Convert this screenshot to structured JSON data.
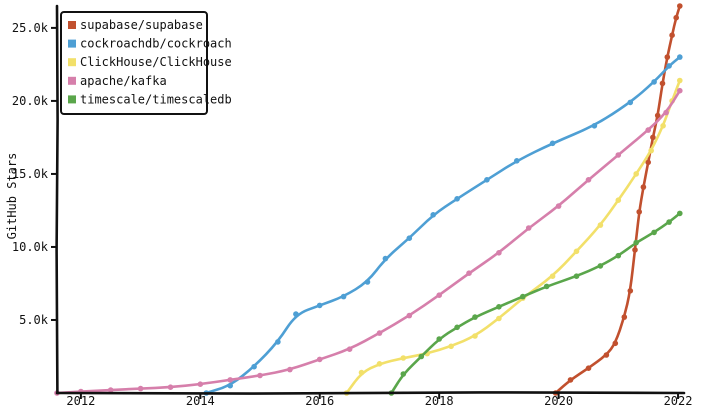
{
  "chart_data": {
    "type": "line",
    "title": "",
    "xlabel": "",
    "ylabel": "GitHub Stars",
    "xlim": [
      2011.6,
      2022.1
    ],
    "ylim": [
      0,
      26500
    ],
    "x_ticks": [
      2012,
      2014,
      2016,
      2018,
      2020,
      2022
    ],
    "x_tick_labels": [
      "2012",
      "2014",
      "2016",
      "2018",
      "2020",
      "2022"
    ],
    "y_ticks": [
      5000,
      10000,
      15000,
      20000,
      25000
    ],
    "y_tick_labels": [
      "5.0k",
      "10.0k",
      "15.0k",
      "20.0k",
      "25.0k"
    ],
    "grid": false,
    "legend_position": "top-left",
    "series": [
      {
        "name": "supabase/supabase",
        "color": "#c1502e",
        "x": [
          2019.95,
          2020.2,
          2020.5,
          2020.8,
          2020.95,
          2021.1,
          2021.2,
          2021.28,
          2021.35,
          2021.42,
          2021.5,
          2021.58,
          2021.66,
          2021.74,
          2021.82,
          2021.9,
          2021.97,
          2022.03
        ],
        "y": [
          0,
          900,
          1700,
          2600,
          3400,
          5200,
          7000,
          9800,
          12400,
          14100,
          15800,
          17500,
          19000,
          21200,
          23000,
          24500,
          25700,
          26500
        ]
      },
      {
        "name": "cockroachdb/cockroach",
        "color": "#4e9fd4",
        "x": [
          2014.1,
          2014.5,
          2014.9,
          2015.3,
          2015.6,
          2016.0,
          2016.4,
          2016.8,
          2017.1,
          2017.5,
          2017.9,
          2018.3,
          2018.8,
          2019.3,
          2019.9,
          2020.6,
          2021.2,
          2021.6,
          2021.85,
          2022.03
        ],
        "y": [
          0,
          500,
          1800,
          3500,
          5400,
          6000,
          6600,
          7600,
          9200,
          10600,
          12200,
          13300,
          14600,
          15900,
          17100,
          18300,
          19900,
          21300,
          22400,
          23000
        ]
      },
      {
        "name": "ClickHouse/ClickHouse",
        "color": "#f2e06a",
        "x": [
          2016.45,
          2016.7,
          2017.0,
          2017.4,
          2017.8,
          2018.2,
          2018.6,
          2019.0,
          2019.4,
          2019.9,
          2020.3,
          2020.7,
          2021.0,
          2021.3,
          2021.55,
          2021.75,
          2021.9,
          2022.03
        ],
        "y": [
          0,
          1400,
          2000,
          2400,
          2700,
          3200,
          3900,
          5100,
          6500,
          8000,
          9700,
          11500,
          13200,
          15000,
          16600,
          18300,
          20000,
          21400
        ]
      },
      {
        "name": "apache/kafka",
        "color": "#d67fab",
        "x": [
          2011.6,
          2012.0,
          2012.5,
          2013.0,
          2013.5,
          2014.0,
          2014.5,
          2015.0,
          2015.5,
          2016.0,
          2016.5,
          2017.0,
          2017.5,
          2018.0,
          2018.5,
          2019.0,
          2019.5,
          2020.0,
          2020.5,
          2021.0,
          2021.5,
          2021.8,
          2022.03
        ],
        "y": [
          0,
          100,
          200,
          300,
          400,
          600,
          900,
          1200,
          1600,
          2300,
          3000,
          4100,
          5300,
          6700,
          8200,
          9600,
          11300,
          12800,
          14600,
          16300,
          18000,
          19200,
          20700
        ]
      },
      {
        "name": "timescale/timescaledb",
        "color": "#5aa64b",
        "x": [
          2017.2,
          2017.4,
          2017.7,
          2018.0,
          2018.3,
          2018.6,
          2019.0,
          2019.4,
          2019.8,
          2020.3,
          2020.7,
          2021.0,
          2021.3,
          2021.6,
          2021.85,
          2022.03
        ],
        "y": [
          0,
          1300,
          2500,
          3700,
          4500,
          5200,
          5900,
          6600,
          7300,
          8000,
          8700,
          9400,
          10300,
          11000,
          11700,
          12300
        ]
      }
    ]
  }
}
